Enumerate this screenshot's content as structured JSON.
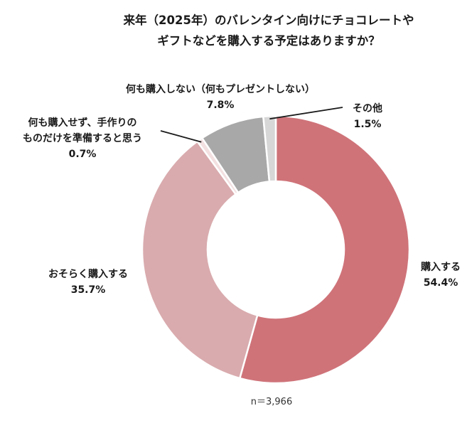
{
  "chart_data": {
    "type": "pie",
    "style": "donut",
    "title_lines": [
      "来年（2025年）のバレンタイン向けにチョコレートや",
      "ギフトなどを購入する予定はありますか？"
    ],
    "slices": [
      {
        "label_lines": [
          "購入する"
        ],
        "value": 54.4,
        "value_label": "54.4%",
        "color": "#cf7379"
      },
      {
        "label_lines": [
          "おそらく購入する"
        ],
        "value": 35.7,
        "value_label": "35.7%",
        "color": "#d9abae"
      },
      {
        "label_lines": [
          "何も購入せず、手作りの",
          "ものだけを準備すると思う"
        ],
        "value": 0.7,
        "value_label": "0.7%",
        "color": "#f3e0e1"
      },
      {
        "label_lines": [
          "何も購入しない（何もプレゼントしない）"
        ],
        "value": 7.8,
        "value_label": "7.8%",
        "color": "#a8a8a8"
      },
      {
        "label_lines": [
          "その他"
        ],
        "value": 1.5,
        "value_label": "1.5%",
        "color": "#d7d7d7"
      }
    ],
    "note": "n＝3,966",
    "colors": {
      "slice_border": "#ffffff",
      "leader_line": "#1a1a1a"
    }
  }
}
